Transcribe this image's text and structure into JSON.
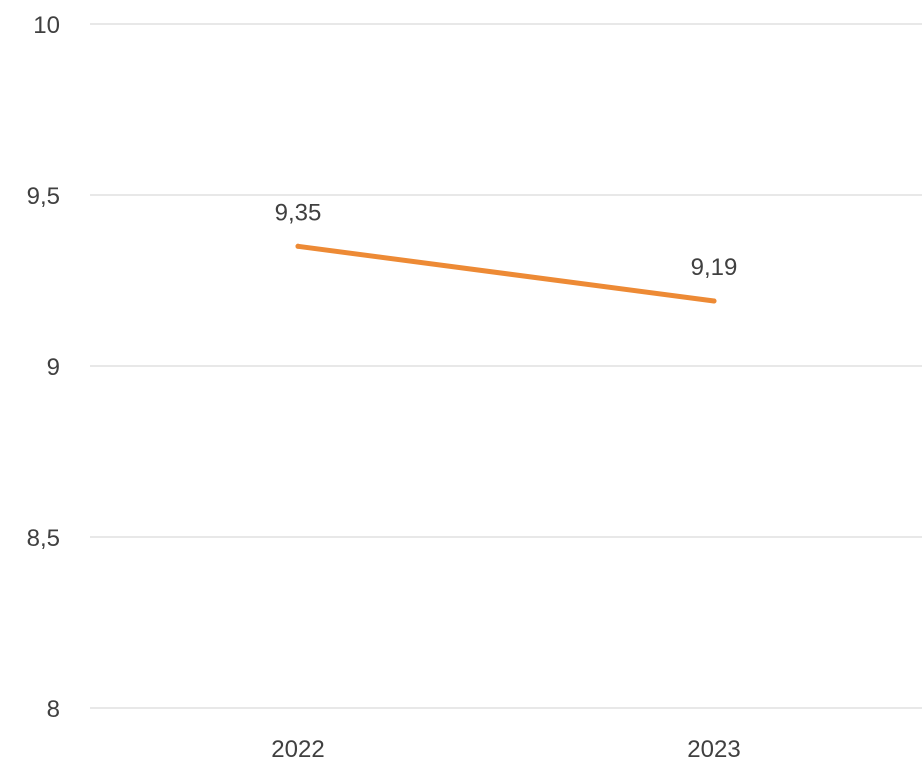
{
  "chart_data": {
    "type": "line",
    "categories": [
      "2022",
      "2023"
    ],
    "series": [
      {
        "values": [
          9.35,
          9.19
        ],
        "data_labels": [
          "9,35",
          "9,19"
        ],
        "color": "#ED8A35"
      }
    ],
    "y_ticks": [
      8,
      8.5,
      9,
      9.5,
      10
    ],
    "y_tick_labels": [
      "8",
      "8,5",
      "9",
      "9,5",
      "10"
    ],
    "ylim": [
      8,
      10
    ],
    "grid": true,
    "legend": "none",
    "gridline_color": "#D9D9D9",
    "text_color": "#404040"
  }
}
